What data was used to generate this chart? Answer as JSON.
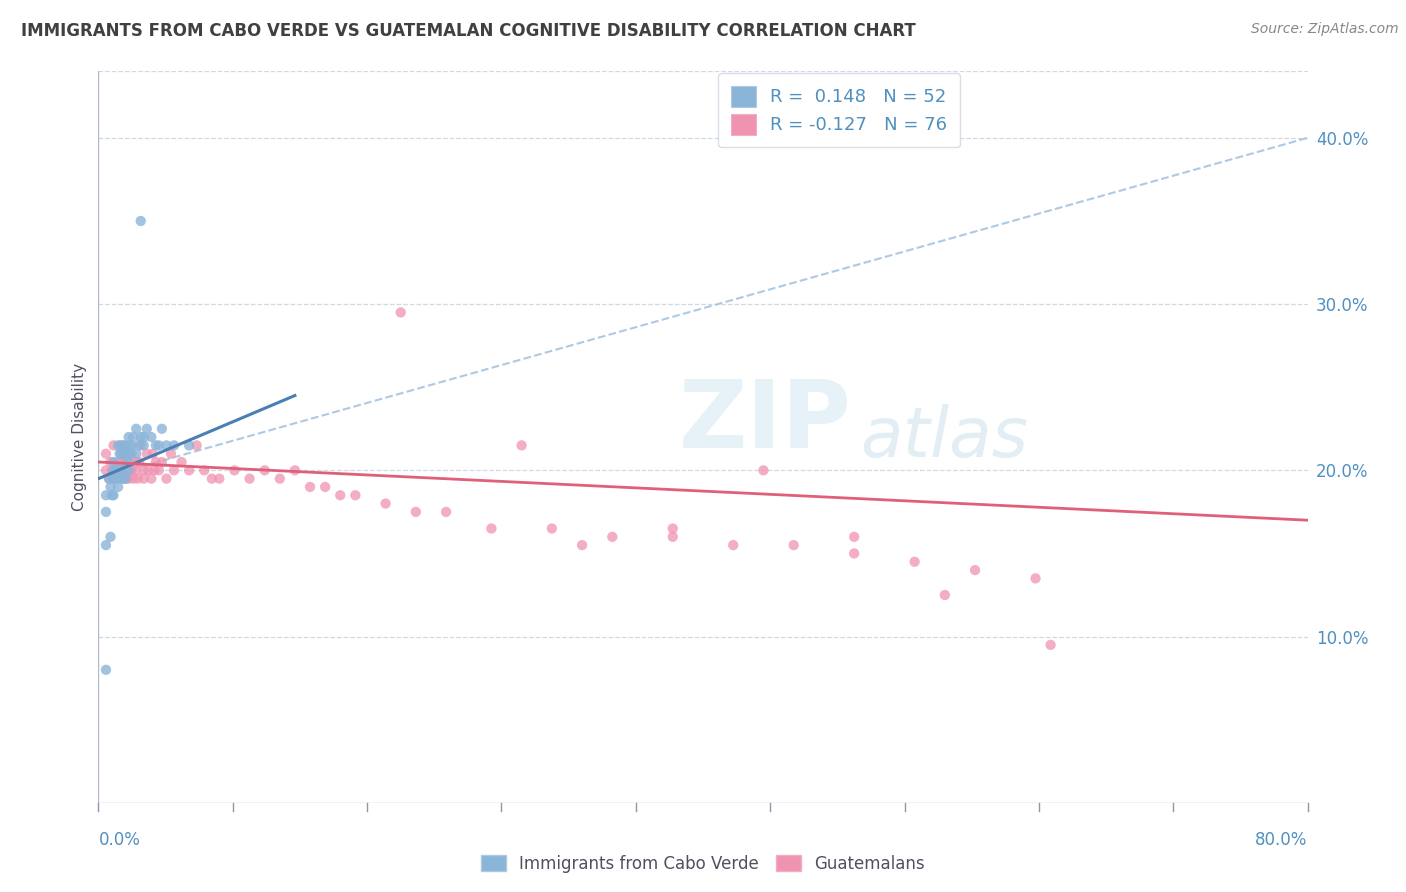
{
  "title": "IMMIGRANTS FROM CABO VERDE VS GUATEMALAN COGNITIVE DISABILITY CORRELATION CHART",
  "source_text": "Source: ZipAtlas.com",
  "ylabel": "Cognitive Disability",
  "right_yticks": [
    "10.0%",
    "20.0%",
    "30.0%",
    "40.0%"
  ],
  "right_ytick_vals": [
    0.1,
    0.2,
    0.3,
    0.4
  ],
  "xmin": 0.0,
  "xmax": 0.8,
  "ymin": 0.0,
  "ymax": 0.44,
  "blue_r": 0.148,
  "pink_r": -0.127,
  "blue_n": 52,
  "pink_n": 76,
  "blue_color": "#8ab4d8",
  "pink_color": "#f093b0",
  "bg_color": "#ffffff",
  "grid_color": "#d0d8e4",
  "title_color": "#404040",
  "axis_label_color": "#5090c0",
  "blue_line_color": "#4a7fb5",
  "pink_line_color": "#e0607a",
  "dash_line_color": "#a0c0e0",
  "blue_points_x": [
    0.005,
    0.005,
    0.005,
    0.007,
    0.008,
    0.008,
    0.009,
    0.01,
    0.01,
    0.01,
    0.01,
    0.012,
    0.012,
    0.013,
    0.013,
    0.014,
    0.014,
    0.015,
    0.015,
    0.015,
    0.015,
    0.016,
    0.016,
    0.017,
    0.017,
    0.018,
    0.018,
    0.018,
    0.019,
    0.02,
    0.02,
    0.02,
    0.021,
    0.022,
    0.022,
    0.023,
    0.025,
    0.025,
    0.027,
    0.028,
    0.03,
    0.03,
    0.032,
    0.035,
    0.038,
    0.04,
    0.042,
    0.045,
    0.05,
    0.06,
    0.005,
    0.028
  ],
  "blue_points_y": [
    0.155,
    0.175,
    0.185,
    0.195,
    0.16,
    0.19,
    0.185,
    0.185,
    0.195,
    0.2,
    0.205,
    0.195,
    0.2,
    0.19,
    0.215,
    0.2,
    0.21,
    0.195,
    0.2,
    0.21,
    0.215,
    0.2,
    0.21,
    0.195,
    0.215,
    0.195,
    0.21,
    0.215,
    0.205,
    0.2,
    0.21,
    0.22,
    0.215,
    0.21,
    0.215,
    0.22,
    0.225,
    0.21,
    0.215,
    0.22,
    0.215,
    0.22,
    0.225,
    0.22,
    0.215,
    0.215,
    0.225,
    0.215,
    0.215,
    0.215,
    0.08,
    0.35
  ],
  "pink_points_x": [
    0.005,
    0.005,
    0.007,
    0.008,
    0.009,
    0.01,
    0.01,
    0.012,
    0.013,
    0.014,
    0.015,
    0.015,
    0.016,
    0.017,
    0.018,
    0.018,
    0.019,
    0.02,
    0.02,
    0.021,
    0.022,
    0.023,
    0.025,
    0.025,
    0.026,
    0.027,
    0.028,
    0.03,
    0.03,
    0.032,
    0.033,
    0.035,
    0.036,
    0.037,
    0.038,
    0.04,
    0.042,
    0.045,
    0.048,
    0.05,
    0.055,
    0.06,
    0.065,
    0.07,
    0.075,
    0.08,
    0.09,
    0.1,
    0.11,
    0.12,
    0.13,
    0.14,
    0.15,
    0.16,
    0.17,
    0.19,
    0.21,
    0.23,
    0.26,
    0.3,
    0.34,
    0.38,
    0.42,
    0.46,
    0.5,
    0.54,
    0.58,
    0.62,
    0.2,
    0.28,
    0.32,
    0.38,
    0.44,
    0.5,
    0.56,
    0.63
  ],
  "pink_points_y": [
    0.2,
    0.21,
    0.195,
    0.205,
    0.2,
    0.195,
    0.215,
    0.2,
    0.205,
    0.2,
    0.205,
    0.215,
    0.195,
    0.205,
    0.21,
    0.195,
    0.2,
    0.205,
    0.195,
    0.205,
    0.2,
    0.195,
    0.2,
    0.205,
    0.195,
    0.205,
    0.215,
    0.2,
    0.195,
    0.21,
    0.2,
    0.195,
    0.21,
    0.2,
    0.205,
    0.2,
    0.205,
    0.195,
    0.21,
    0.2,
    0.205,
    0.2,
    0.215,
    0.2,
    0.195,
    0.195,
    0.2,
    0.195,
    0.2,
    0.195,
    0.2,
    0.19,
    0.19,
    0.185,
    0.185,
    0.18,
    0.175,
    0.175,
    0.165,
    0.165,
    0.16,
    0.16,
    0.155,
    0.155,
    0.15,
    0.145,
    0.14,
    0.135,
    0.295,
    0.215,
    0.155,
    0.165,
    0.2,
    0.16,
    0.125,
    0.095
  ]
}
